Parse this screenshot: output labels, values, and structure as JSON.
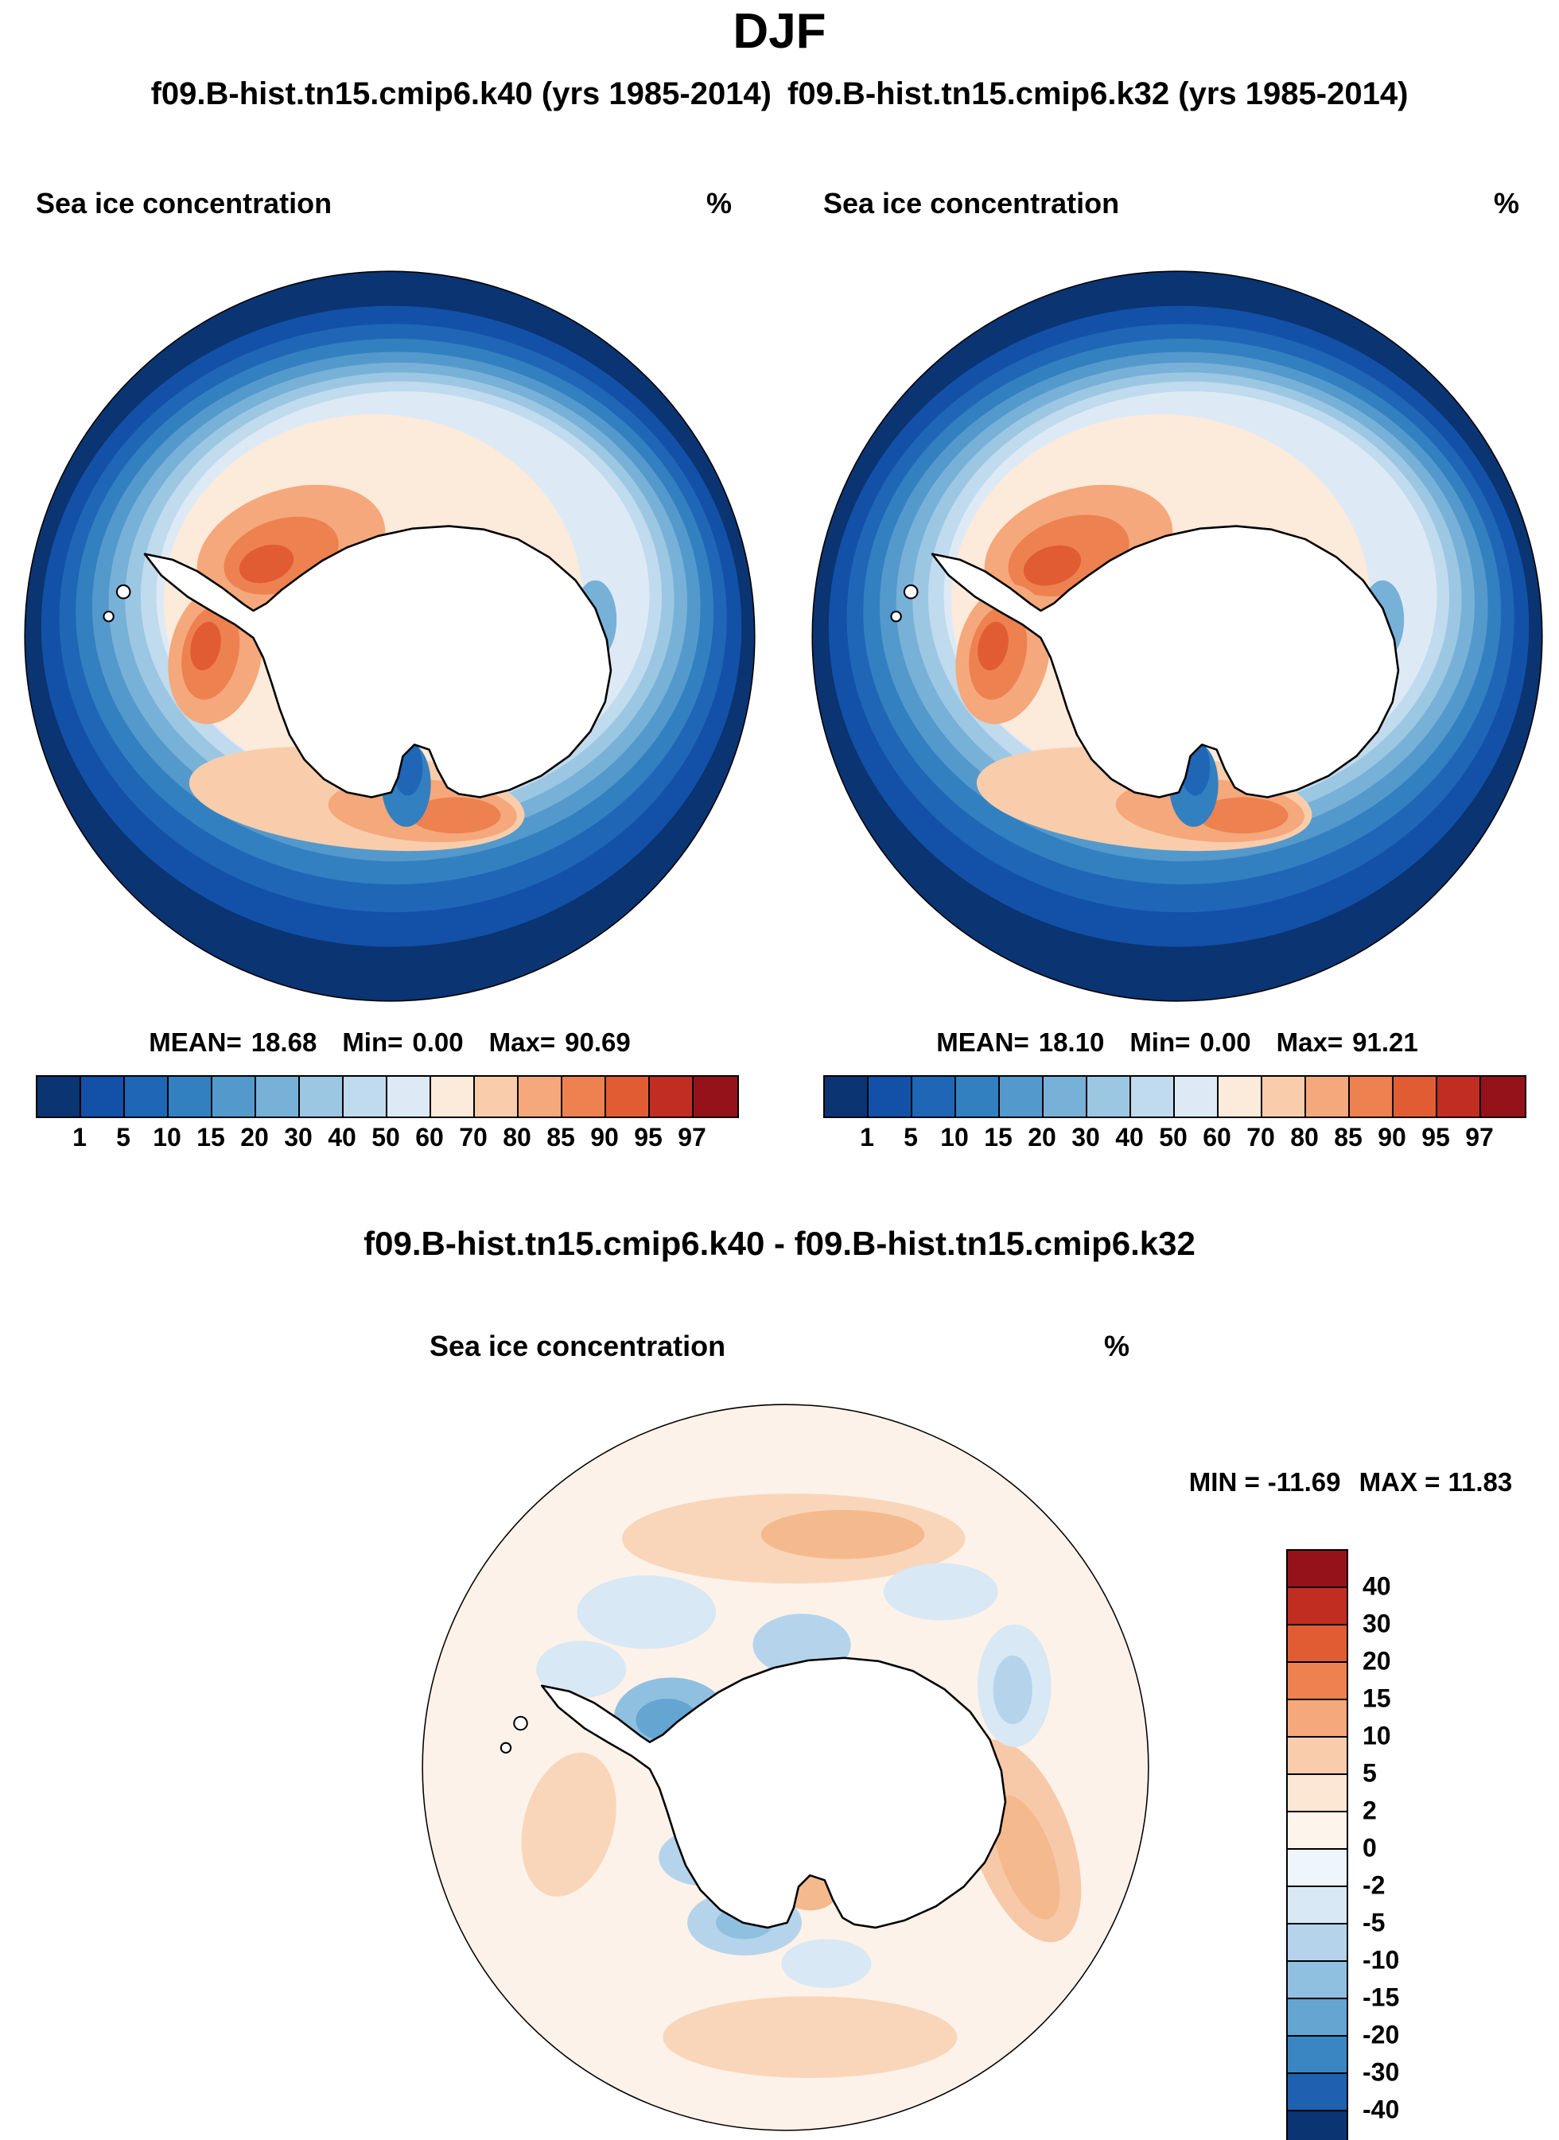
{
  "figure": {
    "title": "DJF"
  },
  "panels": [
    {
      "run_title": "f09.B-hist.tn15.cmip6.k40 (yrs 1985-2014)",
      "field_label": "Sea ice concentration",
      "units": "%",
      "stats": [
        {
          "label": "MEAN=",
          "value": "18.68"
        },
        {
          "label": "Min=",
          "value": "0.00"
        },
        {
          "label": "Max=",
          "value": "90.69"
        }
      ]
    },
    {
      "run_title": "f09.B-hist.tn15.cmip6.k32 (yrs 1985-2014)",
      "field_label": "Sea ice concentration",
      "units": "%",
      "stats": [
        {
          "label": "MEAN=",
          "value": "18.10"
        },
        {
          "label": "Min=",
          "value": "0.00"
        },
        {
          "label": "Max=",
          "value": "91.21"
        }
      ]
    }
  ],
  "diff": {
    "title": "f09.B-hist.tn15.cmip6.k40 - f09.B-hist.tn15.cmip6.k32",
    "field_label": "Sea ice concentration",
    "units": "%",
    "min_label": "MIN =",
    "min_value": "-11.69",
    "max_label": "MAX =",
    "max_value": "11.83"
  },
  "chart_data": [
    {
      "type": "heatmap",
      "subtype": "polar-stereographic-map",
      "region": "Antarctic",
      "season": "DJF",
      "title": "f09.B-hist.tn15.cmip6.k40 (yrs 1985-2014)",
      "variable": "Sea ice concentration",
      "units": "%",
      "stats": {
        "mean": 18.68,
        "min": 0.0,
        "max": 90.69
      },
      "levels": [
        1,
        5,
        10,
        15,
        20,
        30,
        40,
        50,
        60,
        70,
        80,
        85,
        90,
        95,
        97
      ],
      "palette": [
        "#0a3472",
        "#1351a8",
        "#2066b6",
        "#3380c0",
        "#5499cc",
        "#77b1d8",
        "#9cc7e3",
        "#c0daee",
        "#ddeaf5",
        "#fceada",
        "#f9cdab",
        "#f5a87b",
        "#ee8150",
        "#e25c33",
        "#c22d22",
        "#95121b"
      ],
      "legend_position": "bottom"
    },
    {
      "type": "heatmap",
      "subtype": "polar-stereographic-map",
      "region": "Antarctic",
      "season": "DJF",
      "title": "f09.B-hist.tn15.cmip6.k32 (yrs 1985-2014)",
      "variable": "Sea ice concentration",
      "units": "%",
      "stats": {
        "mean": 18.1,
        "min": 0.0,
        "max": 91.21
      },
      "levels": [
        1,
        5,
        10,
        15,
        20,
        30,
        40,
        50,
        60,
        70,
        80,
        85,
        90,
        95,
        97
      ],
      "palette": [
        "#0a3472",
        "#1351a8",
        "#2066b6",
        "#3380c0",
        "#5499cc",
        "#77b1d8",
        "#9cc7e3",
        "#c0daee",
        "#ddeaf5",
        "#fceada",
        "#f9cdab",
        "#f5a87b",
        "#ee8150",
        "#e25c33",
        "#c22d22",
        "#95121b"
      ],
      "legend_position": "bottom"
    },
    {
      "type": "heatmap",
      "subtype": "polar-stereographic-map",
      "region": "Antarctic",
      "season": "DJF",
      "title": "f09.B-hist.tn15.cmip6.k40 - f09.B-hist.tn15.cmip6.k32",
      "variable": "Sea ice concentration difference",
      "units": "%",
      "stats": {
        "min": -11.69,
        "max": 11.83
      },
      "levels": [
        40,
        30,
        20,
        15,
        10,
        5,
        2,
        0,
        -2,
        -5,
        -10,
        -15,
        -20,
        -30,
        -40
      ],
      "palette": [
        "#95121b",
        "#c22d22",
        "#e25c33",
        "#ee8150",
        "#f5a87b",
        "#f9cdab",
        "#fce6d4",
        "#fdf4ec",
        "#eef5fb",
        "#d8e8f4",
        "#b5d4ec",
        "#8fc0e0",
        "#64a5d2",
        "#3a86c2",
        "#1f60b0",
        "#0a3472"
      ],
      "legend_position": "right"
    }
  ]
}
